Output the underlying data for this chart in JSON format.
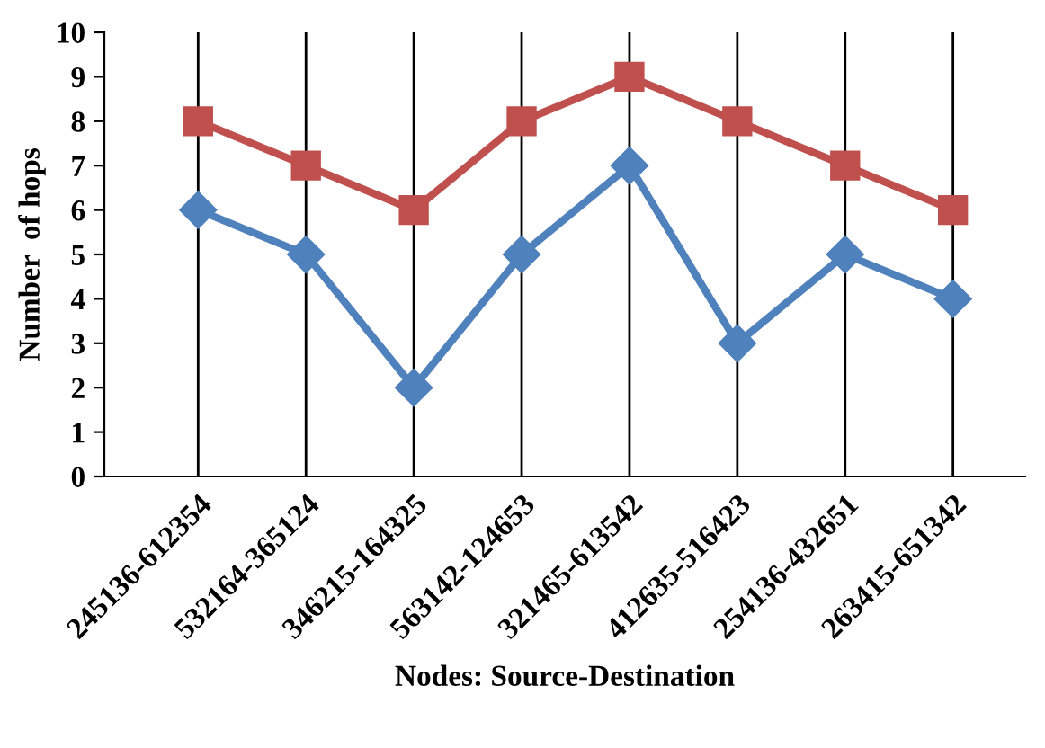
{
  "chart_data": {
    "type": "line",
    "xlabel": "Nodes: Source-Destination",
    "ylabel": "Number  of hops",
    "categories": [
      "245136-612354",
      "532164-365124",
      "346215-164325",
      "563142-124653",
      "321465-613542",
      "412635-516423",
      "254136-432651",
      "263415-651342"
    ],
    "series": [
      {
        "color": "#c0504d",
        "marker": "square",
        "values": [
          8,
          7,
          6,
          8,
          9,
          8,
          7,
          6
        ]
      },
      {
        "color": "#4f81bd",
        "marker": "diamond",
        "values": [
          6,
          5,
          2,
          5,
          7,
          3,
          5,
          4
        ]
      }
    ],
    "ylim": [
      0,
      10
    ],
    "yticks": [
      0,
      1,
      2,
      3,
      4,
      5,
      6,
      7,
      8,
      9,
      10
    ],
    "grid": "x",
    "line_style": "solid"
  }
}
